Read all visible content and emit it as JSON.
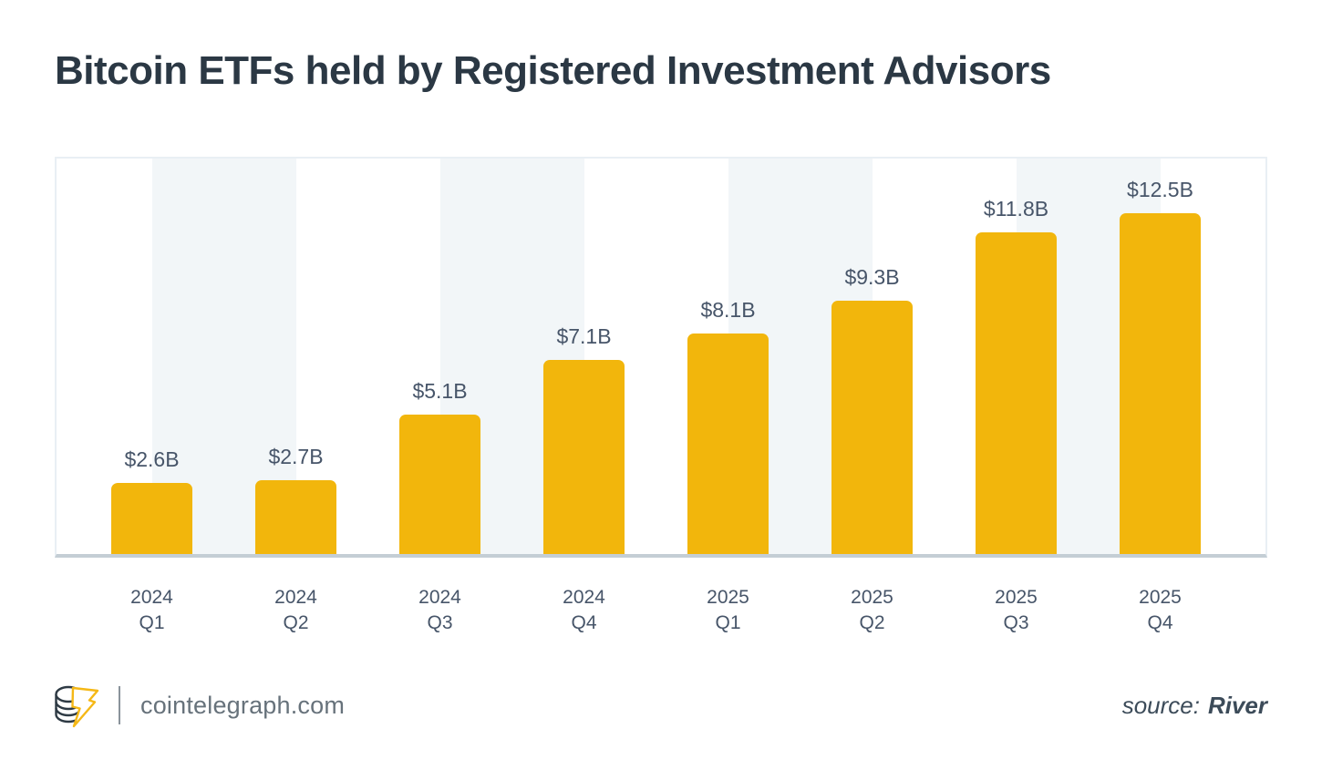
{
  "title": "Bitcoin ETFs held by Registered Investment Advisors",
  "colors": {
    "bar": "#F2B60C",
    "stripe": "#F2F6F8",
    "plot_border": "#E9EFF4",
    "axis_line": "#C4CED5",
    "title_text": "#2B3844",
    "label_text": "#475569",
    "footer_text": "#67727B",
    "source_text": "#3C4B59",
    "logo_yellow": "#F5B816",
    "logo_dark": "#2E3A44"
  },
  "chart_data": {
    "type": "bar",
    "title": "Bitcoin ETFs held by Registered Investment Advisors",
    "categories": [
      "2024 Q1",
      "2024 Q2",
      "2024 Q3",
      "2024 Q4",
      "2025 Q1",
      "2025 Q2",
      "2025 Q3",
      "2025 Q4"
    ],
    "values": [
      2.6,
      2.7,
      5.1,
      7.1,
      8.1,
      9.3,
      11.8,
      12.5
    ],
    "labels": [
      "$2.6B",
      "$2.7B",
      "$5.1B",
      "$7.1B",
      "$8.1B",
      "$9.3B",
      "$11.8B",
      "$12.5B"
    ],
    "unit": "$B",
    "xlabel": "",
    "ylabel": "",
    "ylim": [
      0,
      14.5
    ],
    "grid": false,
    "legend": false,
    "bar_color": "#F2B60C",
    "background_stripes": "alternating vertical bands behind bar pairs"
  },
  "footer": {
    "site": "cointelegraph.com",
    "source_label": "source:",
    "source_name": "River",
    "logo": "cointelegraph-logo"
  }
}
